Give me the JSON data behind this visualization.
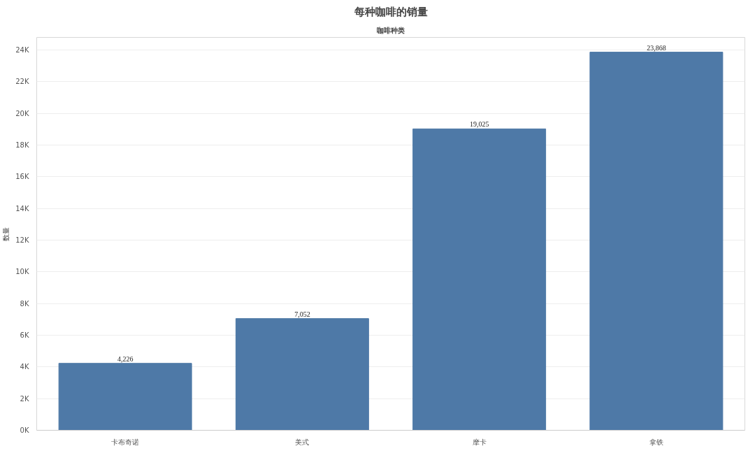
{
  "chart_data": {
    "type": "bar",
    "title": "每种咖啡的销量",
    "subtitle": "咖啡种类",
    "ylabel": "数量",
    "categories": [
      "卡布奇诺",
      "美式",
      "摩卡",
      "拿铁"
    ],
    "values": [
      4226,
      7052,
      19025,
      23868
    ],
    "value_labels": [
      "4,226",
      "7,052",
      "19,025",
      "23,868"
    ],
    "color": "#4e79a7",
    "ylim": [
      0,
      24800
    ],
    "yticks": [
      {
        "value": 0,
        "label": "0K"
      },
      {
        "value": 2000,
        "label": "2K"
      },
      {
        "value": 4000,
        "label": "4K"
      },
      {
        "value": 6000,
        "label": "6K"
      },
      {
        "value": 8000,
        "label": "8K"
      },
      {
        "value": 10000,
        "label": "10K"
      },
      {
        "value": 12000,
        "label": "12K"
      },
      {
        "value": 14000,
        "label": "14K"
      },
      {
        "value": 16000,
        "label": "16K"
      },
      {
        "value": 18000,
        "label": "18K"
      },
      {
        "value": 20000,
        "label": "20K"
      },
      {
        "value": 22000,
        "label": "22K"
      },
      {
        "value": 24000,
        "label": "24K"
      }
    ],
    "grid": "y"
  }
}
